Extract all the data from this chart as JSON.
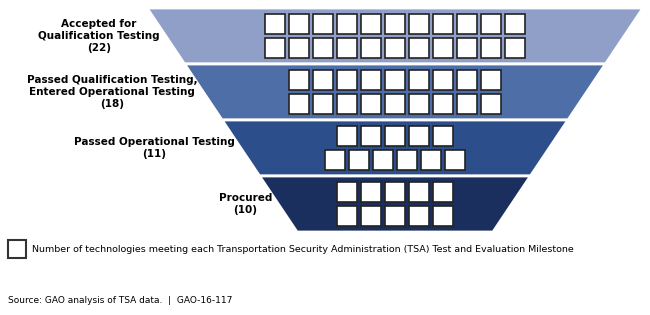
{
  "stages": [
    {
      "label": "Accepted for\nQualification Testing\n(22)",
      "count": 22,
      "color": "#8f9fc8",
      "rows": [
        11,
        11
      ]
    },
    {
      "label": "Passed Qualification Testing,\nEntered Operational Testing\n(18)",
      "count": 18,
      "color": "#4e6ea8",
      "rows": [
        9,
        9
      ]
    },
    {
      "label": "Passed Operational Testing\n(11)",
      "count": 11,
      "color": "#2c4f8c",
      "rows": [
        6,
        5
      ]
    },
    {
      "label": "Procured\n(10)",
      "count": 10,
      "color": "#1a2f5e",
      "rows": [
        5,
        5
      ]
    }
  ],
  "legend_text": "Number of technologies meeting each Transportation Security Administration (TSA) Test and Evaluation Milestone",
  "source_text": "Source: GAO analysis of TSA data.  |  GAO-16-117",
  "background_color": "#ffffff"
}
